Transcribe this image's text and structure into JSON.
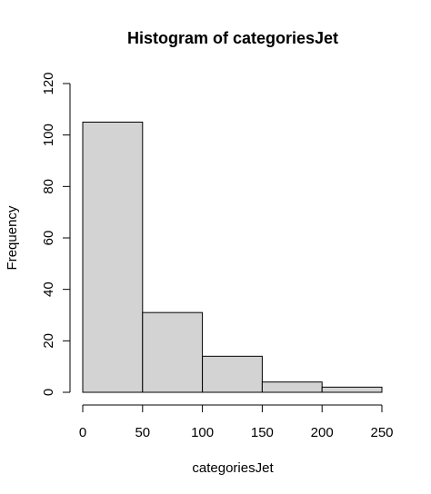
{
  "chart_data": {
    "type": "bar",
    "title": "Histogram of categoriesJet",
    "xlabel": "categoriesJet",
    "ylabel": "Frequency",
    "bins": [
      {
        "start": 0,
        "end": 50,
        "count": 105
      },
      {
        "start": 50,
        "end": 100,
        "count": 31
      },
      {
        "start": 100,
        "end": 150,
        "count": 14
      },
      {
        "start": 150,
        "end": 200,
        "count": 4
      },
      {
        "start": 200,
        "end": 250,
        "count": 2
      }
    ],
    "xlim": [
      0,
      250
    ],
    "ylim": [
      0,
      120
    ],
    "x_ticks": [
      0,
      50,
      100,
      150,
      200,
      250
    ],
    "y_ticks": [
      0,
      20,
      40,
      60,
      80,
      100,
      120
    ],
    "bar_color": "#d3d3d3",
    "grid": false
  }
}
